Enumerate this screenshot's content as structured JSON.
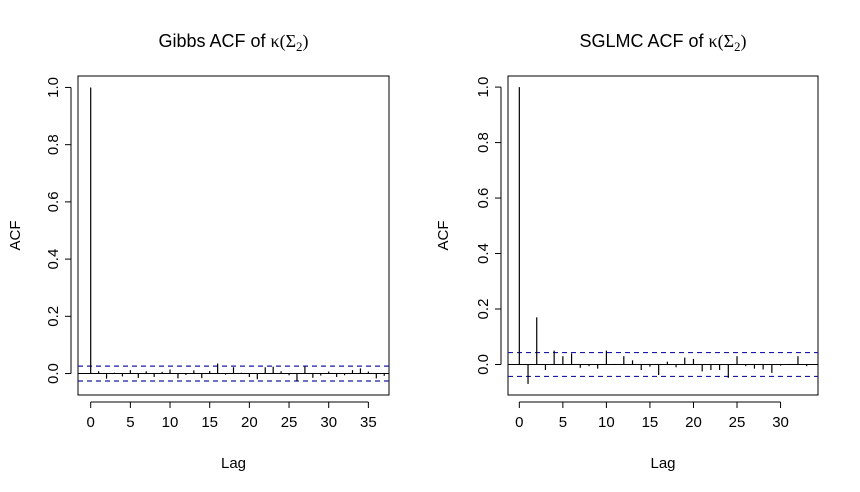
{
  "chart_data": [
    {
      "type": "bar",
      "subtype": "acf",
      "title": {
        "prefix": "Gibbs ACF of ",
        "math": "κ(Σ",
        "sub": "2",
        "suffix": ")"
      },
      "xlabel": "Lag",
      "ylabel": "ACF",
      "xlim": [
        -1.6,
        37.6
      ],
      "ylim": [
        -0.075,
        1.04
      ],
      "xticks": [
        0,
        5,
        10,
        15,
        20,
        25,
        30,
        35
      ],
      "yticks": [
        0.0,
        0.2,
        0.4,
        0.6,
        0.8,
        1.0
      ],
      "ytick_labels": [
        "0.0",
        "0.2",
        "0.4",
        "0.6",
        "0.8",
        "1.0"
      ],
      "ci": 0.026,
      "lags": [
        0,
        1,
        2,
        3,
        4,
        5,
        6,
        7,
        8,
        9,
        10,
        11,
        12,
        13,
        14,
        15,
        16,
        17,
        18,
        19,
        20,
        21,
        22,
        23,
        24,
        25,
        26,
        27,
        28,
        29,
        30,
        31,
        32,
        33,
        34,
        35,
        36,
        37
      ],
      "acf": [
        1.0,
        0.008,
        -0.018,
        0.003,
        -0.01,
        0.012,
        -0.015,
        0.008,
        -0.012,
        0.006,
        0.014,
        -0.017,
        -0.005,
        0.011,
        -0.016,
        0.009,
        0.035,
        -0.004,
        0.022,
        0.003,
        -0.012,
        -0.02,
        0.022,
        0.024,
        0.008,
        -0.006,
        -0.027,
        0.025,
        -0.015,
        -0.007,
        0.007,
        -0.012,
        -0.006,
        0.012,
        0.018,
        0.007,
        -0.017,
        -0.008
      ],
      "grid": false
    },
    {
      "type": "bar",
      "subtype": "acf",
      "title": {
        "prefix": "SGLMC ACF of ",
        "math": "κ(Σ",
        "sub": "2",
        "suffix": ")"
      },
      "xlabel": "Lag",
      "ylabel": "ACF",
      "xlim": [
        -1.3,
        34.3
      ],
      "ylim": [
        -0.11,
        1.04
      ],
      "xticks": [
        0,
        5,
        10,
        15,
        20,
        25,
        30
      ],
      "yticks": [
        0.0,
        0.2,
        0.4,
        0.6,
        0.8,
        1.0
      ],
      "ytick_labels": [
        "0.0",
        "0.2",
        "0.4",
        "0.6",
        "0.8",
        "1.0"
      ],
      "ci": 0.043,
      "lags": [
        0,
        1,
        2,
        3,
        4,
        5,
        6,
        7,
        8,
        9,
        10,
        11,
        12,
        13,
        14,
        15,
        16,
        17,
        18,
        19,
        20,
        21,
        22,
        23,
        24,
        25,
        26,
        27,
        28,
        29,
        30,
        31,
        32,
        33
      ],
      "acf": [
        1.0,
        -0.07,
        0.17,
        -0.02,
        0.05,
        0.03,
        0.04,
        -0.012,
        -0.006,
        -0.015,
        0.05,
        0.002,
        0.03,
        0.015,
        -0.02,
        -0.008,
        -0.038,
        0.01,
        -0.01,
        0.025,
        0.02,
        -0.025,
        -0.02,
        -0.02,
        -0.048,
        0.03,
        -0.006,
        -0.015,
        -0.018,
        -0.03,
        -0.004,
        0.002,
        0.03,
        -0.006
      ],
      "grid": false
    }
  ]
}
